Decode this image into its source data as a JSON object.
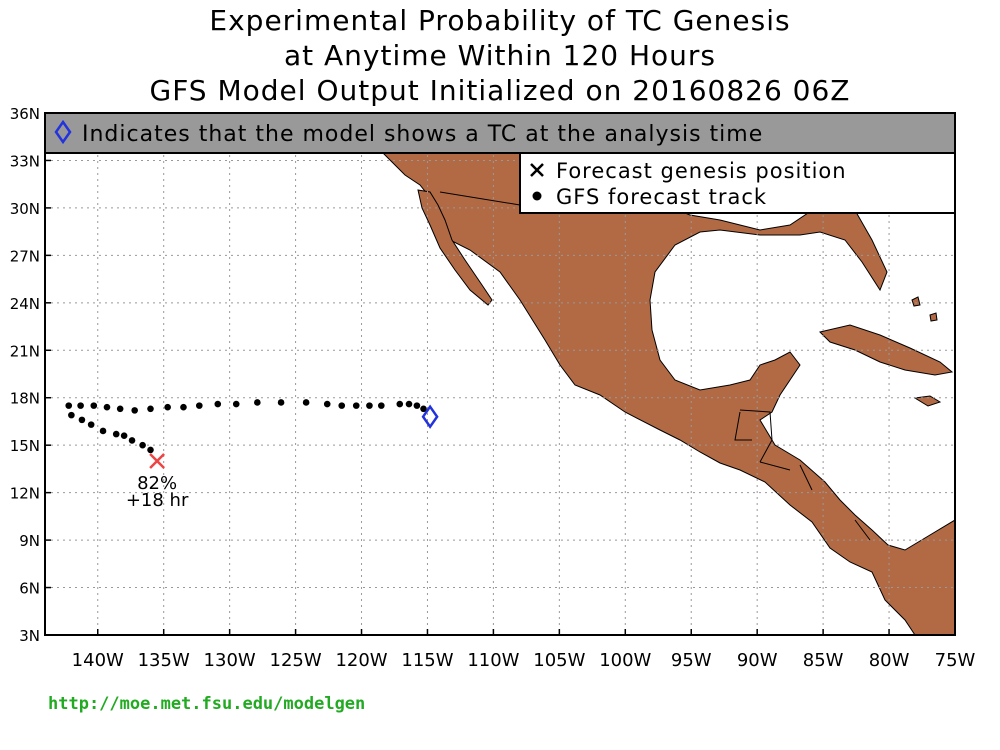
{
  "title": {
    "line1": "Experimental Probability of TC Genesis",
    "line2": "at Anytime Within 120 Hours",
    "line3": "GFS Model Output Initialized on 20160826 06Z"
  },
  "banner": {
    "text": "Indicates that the model shows a TC at the analysis time",
    "icon": "diamond-icon",
    "background": "#999999"
  },
  "legend": {
    "items": [
      {
        "symbol": "x-mark",
        "label": "Forecast genesis position"
      },
      {
        "symbol": "dot",
        "label": "GFS forecast track"
      }
    ]
  },
  "axes": {
    "lat_ticks": [
      "36N",
      "33N",
      "30N",
      "27N",
      "24N",
      "21N",
      "18N",
      "15N",
      "12N",
      "9N",
      "6N",
      "3N"
    ],
    "lon_ticks": [
      "140W",
      "135W",
      "130W",
      "125W",
      "120W",
      "115W",
      "110W",
      "105W",
      "100W",
      "95W",
      "90W",
      "85W",
      "80W",
      "75W"
    ],
    "lat_range": [
      3,
      36
    ],
    "lon_range": [
      -144,
      -75
    ],
    "grid": true
  },
  "colors": {
    "land": "#b26a45",
    "genesis": "#ee4444",
    "analysis_marker": "#2233dd",
    "track": "#000000",
    "footer": "#22aa22"
  },
  "genesis": {
    "lon": -135.5,
    "lat": 14.0,
    "probability": "82%",
    "lead_time": "+18 hr"
  },
  "analysis_marker": {
    "lon": -114.8,
    "lat": 16.8
  },
  "track": [
    {
      "lon": -115.3,
      "lat": 17.3
    },
    {
      "lon": -115.8,
      "lat": 17.5
    },
    {
      "lon": -116.4,
      "lat": 17.6
    },
    {
      "lon": -117.1,
      "lat": 17.6
    },
    {
      "lon": -118.5,
      "lat": 17.5
    },
    {
      "lon": -119.4,
      "lat": 17.5
    },
    {
      "lon": -120.4,
      "lat": 17.5
    },
    {
      "lon": -121.5,
      "lat": 17.5
    },
    {
      "lon": -122.6,
      "lat": 17.6
    },
    {
      "lon": -124.2,
      "lat": 17.7
    },
    {
      "lon": -126.1,
      "lat": 17.7
    },
    {
      "lon": -127.9,
      "lat": 17.7
    },
    {
      "lon": -129.5,
      "lat": 17.6
    },
    {
      "lon": -130.9,
      "lat": 17.6
    },
    {
      "lon": -132.3,
      "lat": 17.5
    },
    {
      "lon": -133.5,
      "lat": 17.4
    },
    {
      "lon": -134.7,
      "lat": 17.4
    },
    {
      "lon": -136.0,
      "lat": 17.3
    },
    {
      "lon": -137.2,
      "lat": 17.2
    },
    {
      "lon": -138.3,
      "lat": 17.3
    },
    {
      "lon": -139.3,
      "lat": 17.4
    },
    {
      "lon": -140.3,
      "lat": 17.5
    },
    {
      "lon": -141.3,
      "lat": 17.5
    },
    {
      "lon": -142.2,
      "lat": 17.5
    },
    {
      "lon": -142.0,
      "lat": 16.9
    },
    {
      "lon": -141.2,
      "lat": 16.6
    },
    {
      "lon": -140.5,
      "lat": 16.3
    },
    {
      "lon": -139.6,
      "lat": 15.9
    },
    {
      "lon": -138.6,
      "lat": 15.7
    },
    {
      "lon": -138.0,
      "lat": 15.6
    },
    {
      "lon": -137.4,
      "lat": 15.3
    },
    {
      "lon": -136.6,
      "lat": 15.0
    },
    {
      "lon": -136.0,
      "lat": 14.7
    }
  ],
  "footer": {
    "url": "http://moe.met.fsu.edu/modelgen"
  }
}
